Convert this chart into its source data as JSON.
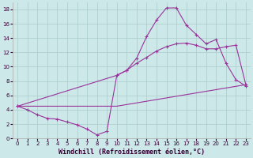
{
  "background_color": "#cce8e8",
  "line_color": "#993399",
  "grid_color": "#aacccc",
  "xlabel": "Windchill (Refroidissement éolien,°C)",
  "xlim": [
    -0.5,
    23.5
  ],
  "ylim": [
    0,
    19
  ],
  "yticks": [
    0,
    2,
    4,
    6,
    8,
    10,
    12,
    14,
    16,
    18
  ],
  "xticks": [
    0,
    1,
    2,
    3,
    4,
    5,
    6,
    7,
    8,
    9,
    10,
    11,
    12,
    13,
    14,
    15,
    16,
    17,
    18,
    19,
    20,
    21,
    22,
    23
  ],
  "line1_x": [
    0,
    1,
    2,
    3,
    4,
    5,
    6,
    7,
    8,
    9,
    10,
    11,
    12,
    13,
    14,
    15,
    16,
    17,
    18,
    19,
    20,
    21,
    22,
    23
  ],
  "line1_y": [
    4.5,
    4.0,
    3.3,
    2.8,
    2.7,
    2.3,
    1.9,
    1.3,
    0.5,
    1.0,
    8.8,
    9.5,
    11.2,
    14.2,
    16.5,
    18.2,
    18.2,
    15.8,
    14.5,
    13.2,
    13.8,
    10.5,
    8.2,
    7.3
  ],
  "line2_x": [
    0,
    10,
    11,
    12,
    13,
    14,
    15,
    16,
    17,
    18,
    19,
    20,
    21,
    22,
    23
  ],
  "line2_y": [
    4.5,
    8.8,
    9.5,
    10.5,
    11.3,
    12.2,
    12.8,
    13.2,
    13.3,
    13.0,
    12.5,
    12.5,
    12.8,
    13.0,
    7.5
  ],
  "line3_x": [
    0,
    10,
    23
  ],
  "line3_y": [
    4.5,
    4.5,
    7.5
  ],
  "marker_size": 2.5,
  "line_width": 0.8,
  "tick_fontsize": 5.0,
  "xlabel_fontsize": 6.0
}
